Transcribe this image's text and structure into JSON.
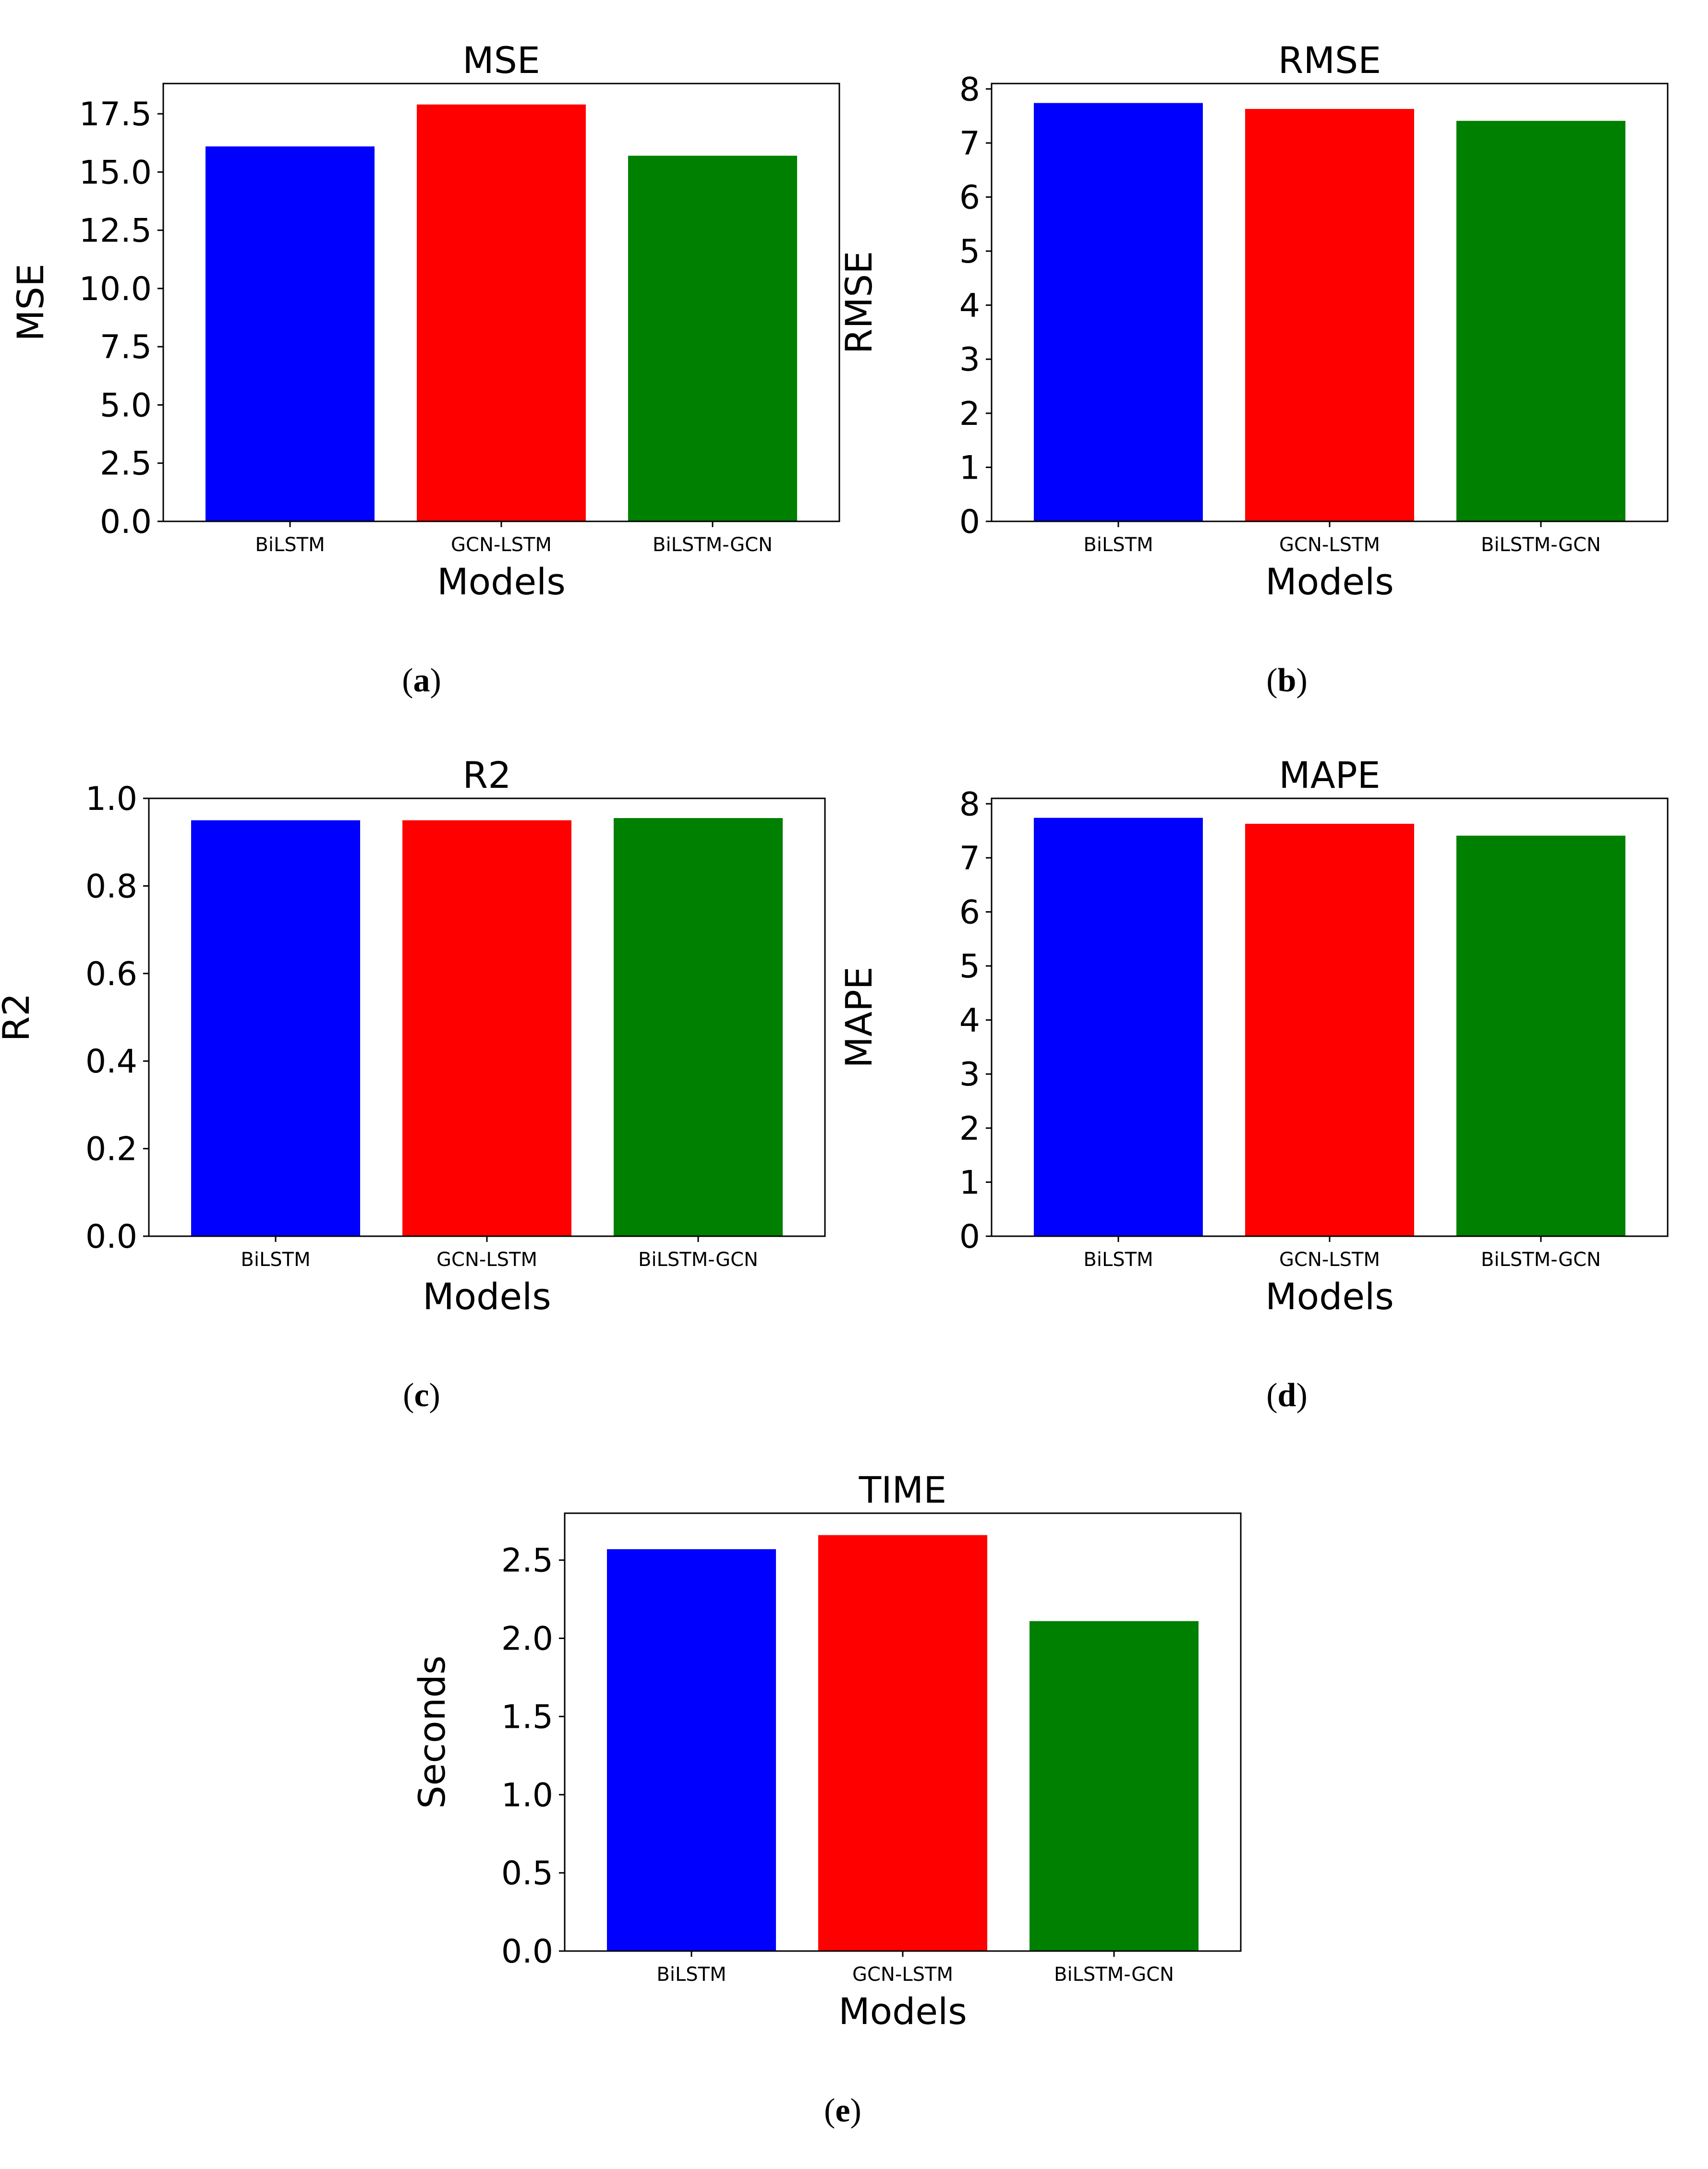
{
  "chart_data": [
    {
      "id": "a",
      "type": "bar",
      "title": "MSE",
      "xlabel": "Models",
      "ylabel": "MSE",
      "categories": [
        "BiLSTM",
        "GCN-LSTM",
        "BiLSTM-GCN"
      ],
      "values": [
        16.1,
        17.9,
        15.7
      ],
      "colors": [
        "#0000ff",
        "#ff0000",
        "#008000"
      ],
      "ylim": [
        0,
        18.8
      ],
      "yticks": [
        0,
        2.5,
        5,
        7.5,
        10,
        12.5,
        15,
        17.5
      ],
      "ytick_labels": [
        "0.0",
        "2.5",
        "5.0",
        "7.5",
        "10.0",
        "12.5",
        "15.0",
        "17.5"
      ],
      "caption": "a"
    },
    {
      "id": "b",
      "type": "bar",
      "title": "RMSE",
      "xlabel": "Models",
      "ylabel": "RMSE",
      "categories": [
        "BiLSTM",
        "GCN-LSTM",
        "BiLSTM-GCN"
      ],
      "values": [
        7.74,
        7.63,
        7.41
      ],
      "colors": [
        "#0000ff",
        "#ff0000",
        "#008000"
      ],
      "ylim": [
        0,
        8.1
      ],
      "yticks": [
        0,
        1,
        2,
        3,
        4,
        5,
        6,
        7,
        8
      ],
      "ytick_labels": [
        "0",
        "1",
        "2",
        "3",
        "4",
        "5",
        "6",
        "7",
        "8"
      ],
      "caption": "b"
    },
    {
      "id": "c",
      "type": "bar",
      "title": "R2",
      "xlabel": "Models",
      "ylabel": "R2",
      "categories": [
        "BiLSTM",
        "GCN-LSTM",
        "BiLSTM-GCN"
      ],
      "values": [
        0.95,
        0.95,
        0.955
      ],
      "colors": [
        "#0000ff",
        "#ff0000",
        "#008000"
      ],
      "ylim": [
        0,
        1.0
      ],
      "yticks": [
        0,
        0.2,
        0.4,
        0.6,
        0.8,
        1.0
      ],
      "ytick_labels": [
        "0.0",
        "0.2",
        "0.4",
        "0.6",
        "0.8",
        "1.0"
      ],
      "caption": "c"
    },
    {
      "id": "d",
      "type": "bar",
      "title": "MAPE",
      "xlabel": "Models",
      "ylabel": "MAPE",
      "categories": [
        "BiLSTM",
        "GCN-LSTM",
        "BiLSTM-GCN"
      ],
      "values": [
        7.74,
        7.63,
        7.41
      ],
      "colors": [
        "#0000ff",
        "#ff0000",
        "#008000"
      ],
      "ylim": [
        0,
        8.1
      ],
      "yticks": [
        0,
        1,
        2,
        3,
        4,
        5,
        6,
        7,
        8
      ],
      "ytick_labels": [
        "0",
        "1",
        "2",
        "3",
        "4",
        "5",
        "6",
        "7",
        "8"
      ],
      "caption": "d"
    },
    {
      "id": "e",
      "type": "bar",
      "title": "TIME",
      "xlabel": "Models",
      "ylabel": "Seconds",
      "categories": [
        "BiLSTM",
        "GCN-LSTM",
        "BiLSTM-GCN"
      ],
      "values": [
        2.57,
        2.66,
        2.11
      ],
      "colors": [
        "#0000ff",
        "#ff0000",
        "#008000"
      ],
      "ylim": [
        0,
        2.8
      ],
      "yticks": [
        0,
        0.5,
        1,
        1.5,
        2,
        2.5
      ],
      "ytick_labels": [
        "0.0",
        "0.5",
        "1.0",
        "1.5",
        "2.0",
        "2.5"
      ],
      "caption": "e"
    }
  ]
}
